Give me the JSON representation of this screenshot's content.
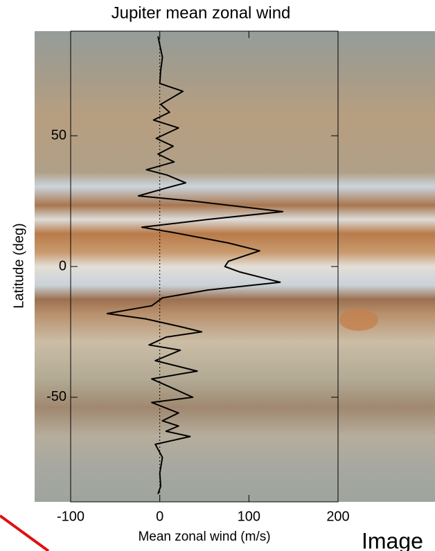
{
  "chart_data": {
    "type": "line",
    "title": "Jupiter mean zonal wind",
    "xlabel": "Mean zonal wind (m/s)",
    "ylabel": "Latitude (deg)",
    "xlim": [
      -100,
      200
    ],
    "ylim": [
      -90,
      90
    ],
    "xticks": [
      -100,
      0,
      100,
      200
    ],
    "yticks": [
      -50,
      0,
      50
    ],
    "zero_line": true,
    "series": [
      {
        "color": "#000000",
        "x": [
          -2,
          3,
          1,
          0,
          26,
          1,
          11,
          -7,
          21,
          -4,
          15,
          -2,
          16,
          -15,
          8,
          29,
          7,
          -24,
          38,
          138,
          54,
          -20,
          15,
          77,
          112,
          77,
          73,
          89,
          135,
          54,
          3,
          -9,
          -59,
          -16,
          23,
          47,
          7,
          -12,
          23,
          -5,
          42,
          -9,
          11,
          37,
          -9,
          21,
          3,
          21,
          7,
          34,
          -5,
          3,
          0,
          1,
          -2
        ],
        "y": [
          88,
          80,
          75,
          70,
          67,
          62,
          59,
          56,
          53,
          49,
          46,
          43,
          40,
          37,
          35,
          32,
          30,
          27,
          25,
          21,
          18,
          15,
          13,
          9,
          6,
          2,
          0,
          -2,
          -6,
          -9,
          -12,
          -15,
          -18,
          -20,
          -23,
          -25,
          -27,
          -30,
          -32,
          -36,
          -40,
          -43,
          -46,
          -50,
          -52,
          -56,
          -59,
          -61,
          -63,
          -65,
          -68,
          -73,
          -79,
          -84,
          -87
        ]
      }
    ],
    "other_text": "Image"
  }
}
